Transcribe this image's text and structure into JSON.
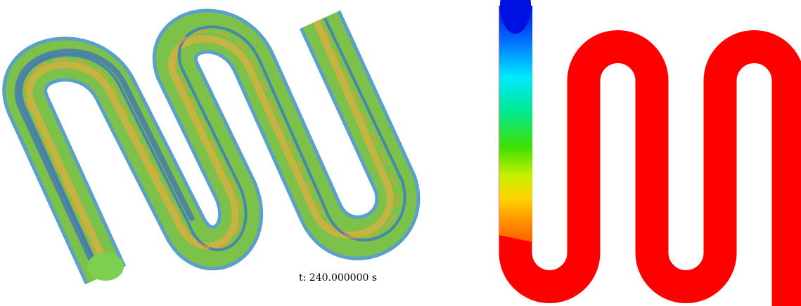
{
  "annotation": "t: 240.000000 s"
}
